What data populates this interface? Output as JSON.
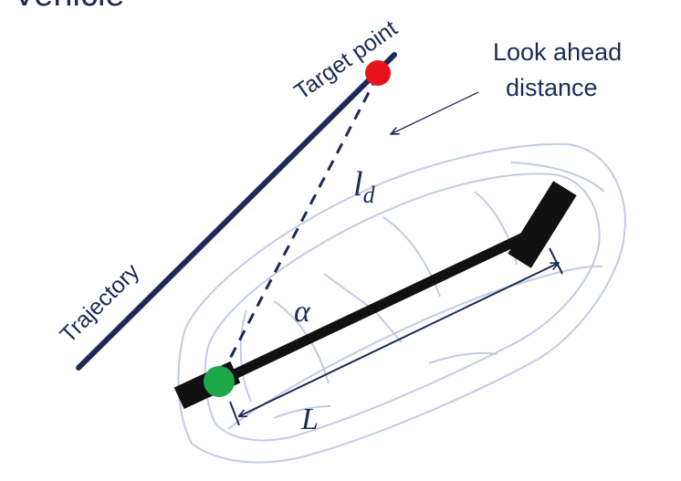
{
  "header": {
    "partial_title": "Vehicle"
  },
  "labels": {
    "target_point": "Target point",
    "look_ahead_line1": "Look ahead",
    "look_ahead_line2": "distance",
    "trajectory": "Trajectory",
    "lookahead_symbol_main": "l",
    "lookahead_symbol_sub": "d",
    "alpha_symbol": "α",
    "wheelbase_symbol": "L"
  },
  "colors": {
    "trajectory": "#1b2a57",
    "target_point": "#e8141b",
    "rear_axle_point": "#1fa84a",
    "wheels_and_axle": "#111111",
    "car_outline": "#b8c2dc",
    "dimension_arrow": "#1b2a57",
    "text": "#1b2a57"
  },
  "icons": {
    "target_marker": "red-dot",
    "rear_marker": "green-dot",
    "annotation_arrow": "thin-arrow"
  }
}
